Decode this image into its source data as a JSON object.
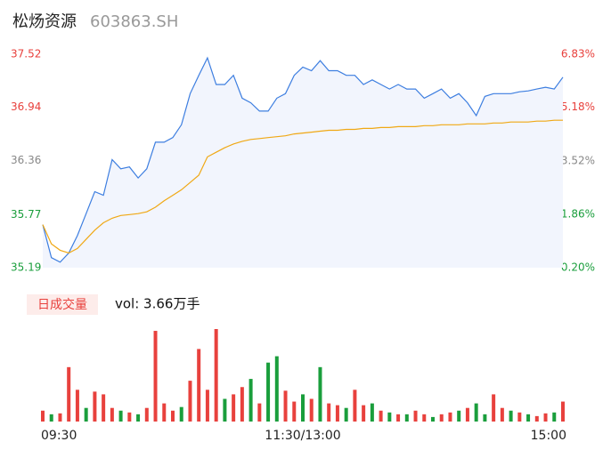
{
  "chart_data": {
    "type": "line",
    "title": "松炀资源",
    "subtitle": "603863.SH",
    "xlim": [
      0,
      240
    ],
    "xticks": [
      {
        "value": 0,
        "label": "09:30"
      },
      {
        "value": 120,
        "label": "11:30/13:00"
      },
      {
        "value": 240,
        "label": "15:00"
      }
    ],
    "ylim": [
      35.19,
      37.52
    ],
    "yticks": [
      35.19,
      35.77,
      36.36,
      36.94,
      37.52
    ],
    "ytick_colors": [
      "#1a9e3c",
      "#1a9e3c",
      "#888888",
      "#e8413d",
      "#e8413d"
    ],
    "y2lim": [
      0.2,
      6.83
    ],
    "y2ticks": [
      {
        "value": 0.2,
        "label": "0.20%"
      },
      {
        "value": 1.86,
        "label": "1.86%"
      },
      {
        "value": 3.52,
        "label": "3.52%"
      },
      {
        "value": 5.18,
        "label": "5.18%"
      },
      {
        "value": 6.83,
        "label": "6.83%"
      }
    ],
    "x": [
      0,
      4,
      8,
      12,
      16,
      20,
      24,
      28,
      32,
      36,
      40,
      44,
      48,
      52,
      56,
      60,
      64,
      68,
      72,
      76,
      80,
      84,
      88,
      92,
      96,
      100,
      104,
      108,
      112,
      116,
      120,
      124,
      128,
      132,
      136,
      140,
      144,
      148,
      152,
      156,
      160,
      164,
      168,
      172,
      176,
      180,
      184,
      188,
      192,
      196,
      200,
      204,
      208,
      212,
      216,
      220,
      224,
      228,
      232,
      236,
      240
    ],
    "series": [
      {
        "name": "price",
        "color": "#3d7ee0",
        "area_color": "#f2f5fd",
        "values": [
          35.66,
          35.3,
          35.25,
          35.35,
          35.54,
          35.78,
          36.02,
          35.98,
          36.37,
          36.27,
          36.29,
          36.17,
          36.27,
          36.56,
          36.56,
          36.61,
          36.75,
          37.09,
          37.29,
          37.48,
          37.19,
          37.19,
          37.29,
          37.04,
          36.99,
          36.9,
          36.9,
          37.04,
          37.09,
          37.29,
          37.38,
          37.34,
          37.45,
          37.34,
          37.34,
          37.29,
          37.29,
          37.19,
          37.24,
          37.19,
          37.14,
          37.19,
          37.14,
          37.14,
          37.04,
          37.09,
          37.14,
          37.04,
          37.09,
          36.99,
          36.85,
          37.06,
          37.09,
          37.09,
          37.09,
          37.11,
          37.12,
          37.14,
          37.16,
          37.14,
          37.27
        ]
      },
      {
        "name": "average",
        "color": "#f0a814",
        "values": [
          35.66,
          35.45,
          35.38,
          35.35,
          35.4,
          35.5,
          35.6,
          35.68,
          35.73,
          35.76,
          35.77,
          35.78,
          35.8,
          35.85,
          35.92,
          35.98,
          36.04,
          36.12,
          36.2,
          36.4,
          36.45,
          36.5,
          36.54,
          36.57,
          36.59,
          36.6,
          36.61,
          36.62,
          36.63,
          36.65,
          36.66,
          36.67,
          36.68,
          36.69,
          36.69,
          36.7,
          36.7,
          36.71,
          36.71,
          36.72,
          36.72,
          36.73,
          36.73,
          36.73,
          36.74,
          36.74,
          36.75,
          36.75,
          36.75,
          36.76,
          36.76,
          36.76,
          36.77,
          36.77,
          36.78,
          36.78,
          36.78,
          36.79,
          36.79,
          36.8,
          36.8
        ]
      }
    ],
    "volume": {
      "legend": "日成交量",
      "label": "vol: 3.66万手",
      "up_color": "#e8413d",
      "down_color": "#1a9e3c",
      "values": [
        120,
        80,
        90,
        600,
        350,
        150,
        330,
        300,
        150,
        120,
        100,
        80,
        150,
        1000,
        200,
        120,
        160,
        450,
        800,
        350,
        1020,
        250,
        300,
        380,
        470,
        200,
        650,
        720,
        340,
        220,
        300,
        250,
        600,
        200,
        180,
        150,
        350,
        180,
        200,
        120,
        100,
        80,
        80,
        120,
        80,
        50,
        80,
        100,
        120,
        150,
        200,
        80,
        300,
        150,
        120,
        100,
        80,
        60,
        90,
        100,
        220
      ],
      "up": [
        true,
        false,
        true,
        true,
        true,
        false,
        true,
        true,
        true,
        false,
        true,
        false,
        true,
        true,
        true,
        true,
        false,
        true,
        true,
        true,
        true,
        false,
        true,
        true,
        false,
        true,
        false,
        false,
        true,
        true,
        false,
        true,
        false,
        true,
        true,
        false,
        true,
        true,
        false,
        true,
        false,
        true,
        false,
        true,
        true,
        false,
        true,
        true,
        false,
        true,
        false,
        false,
        true,
        true,
        false,
        true,
        false,
        true,
        true,
        false,
        true
      ]
    }
  }
}
